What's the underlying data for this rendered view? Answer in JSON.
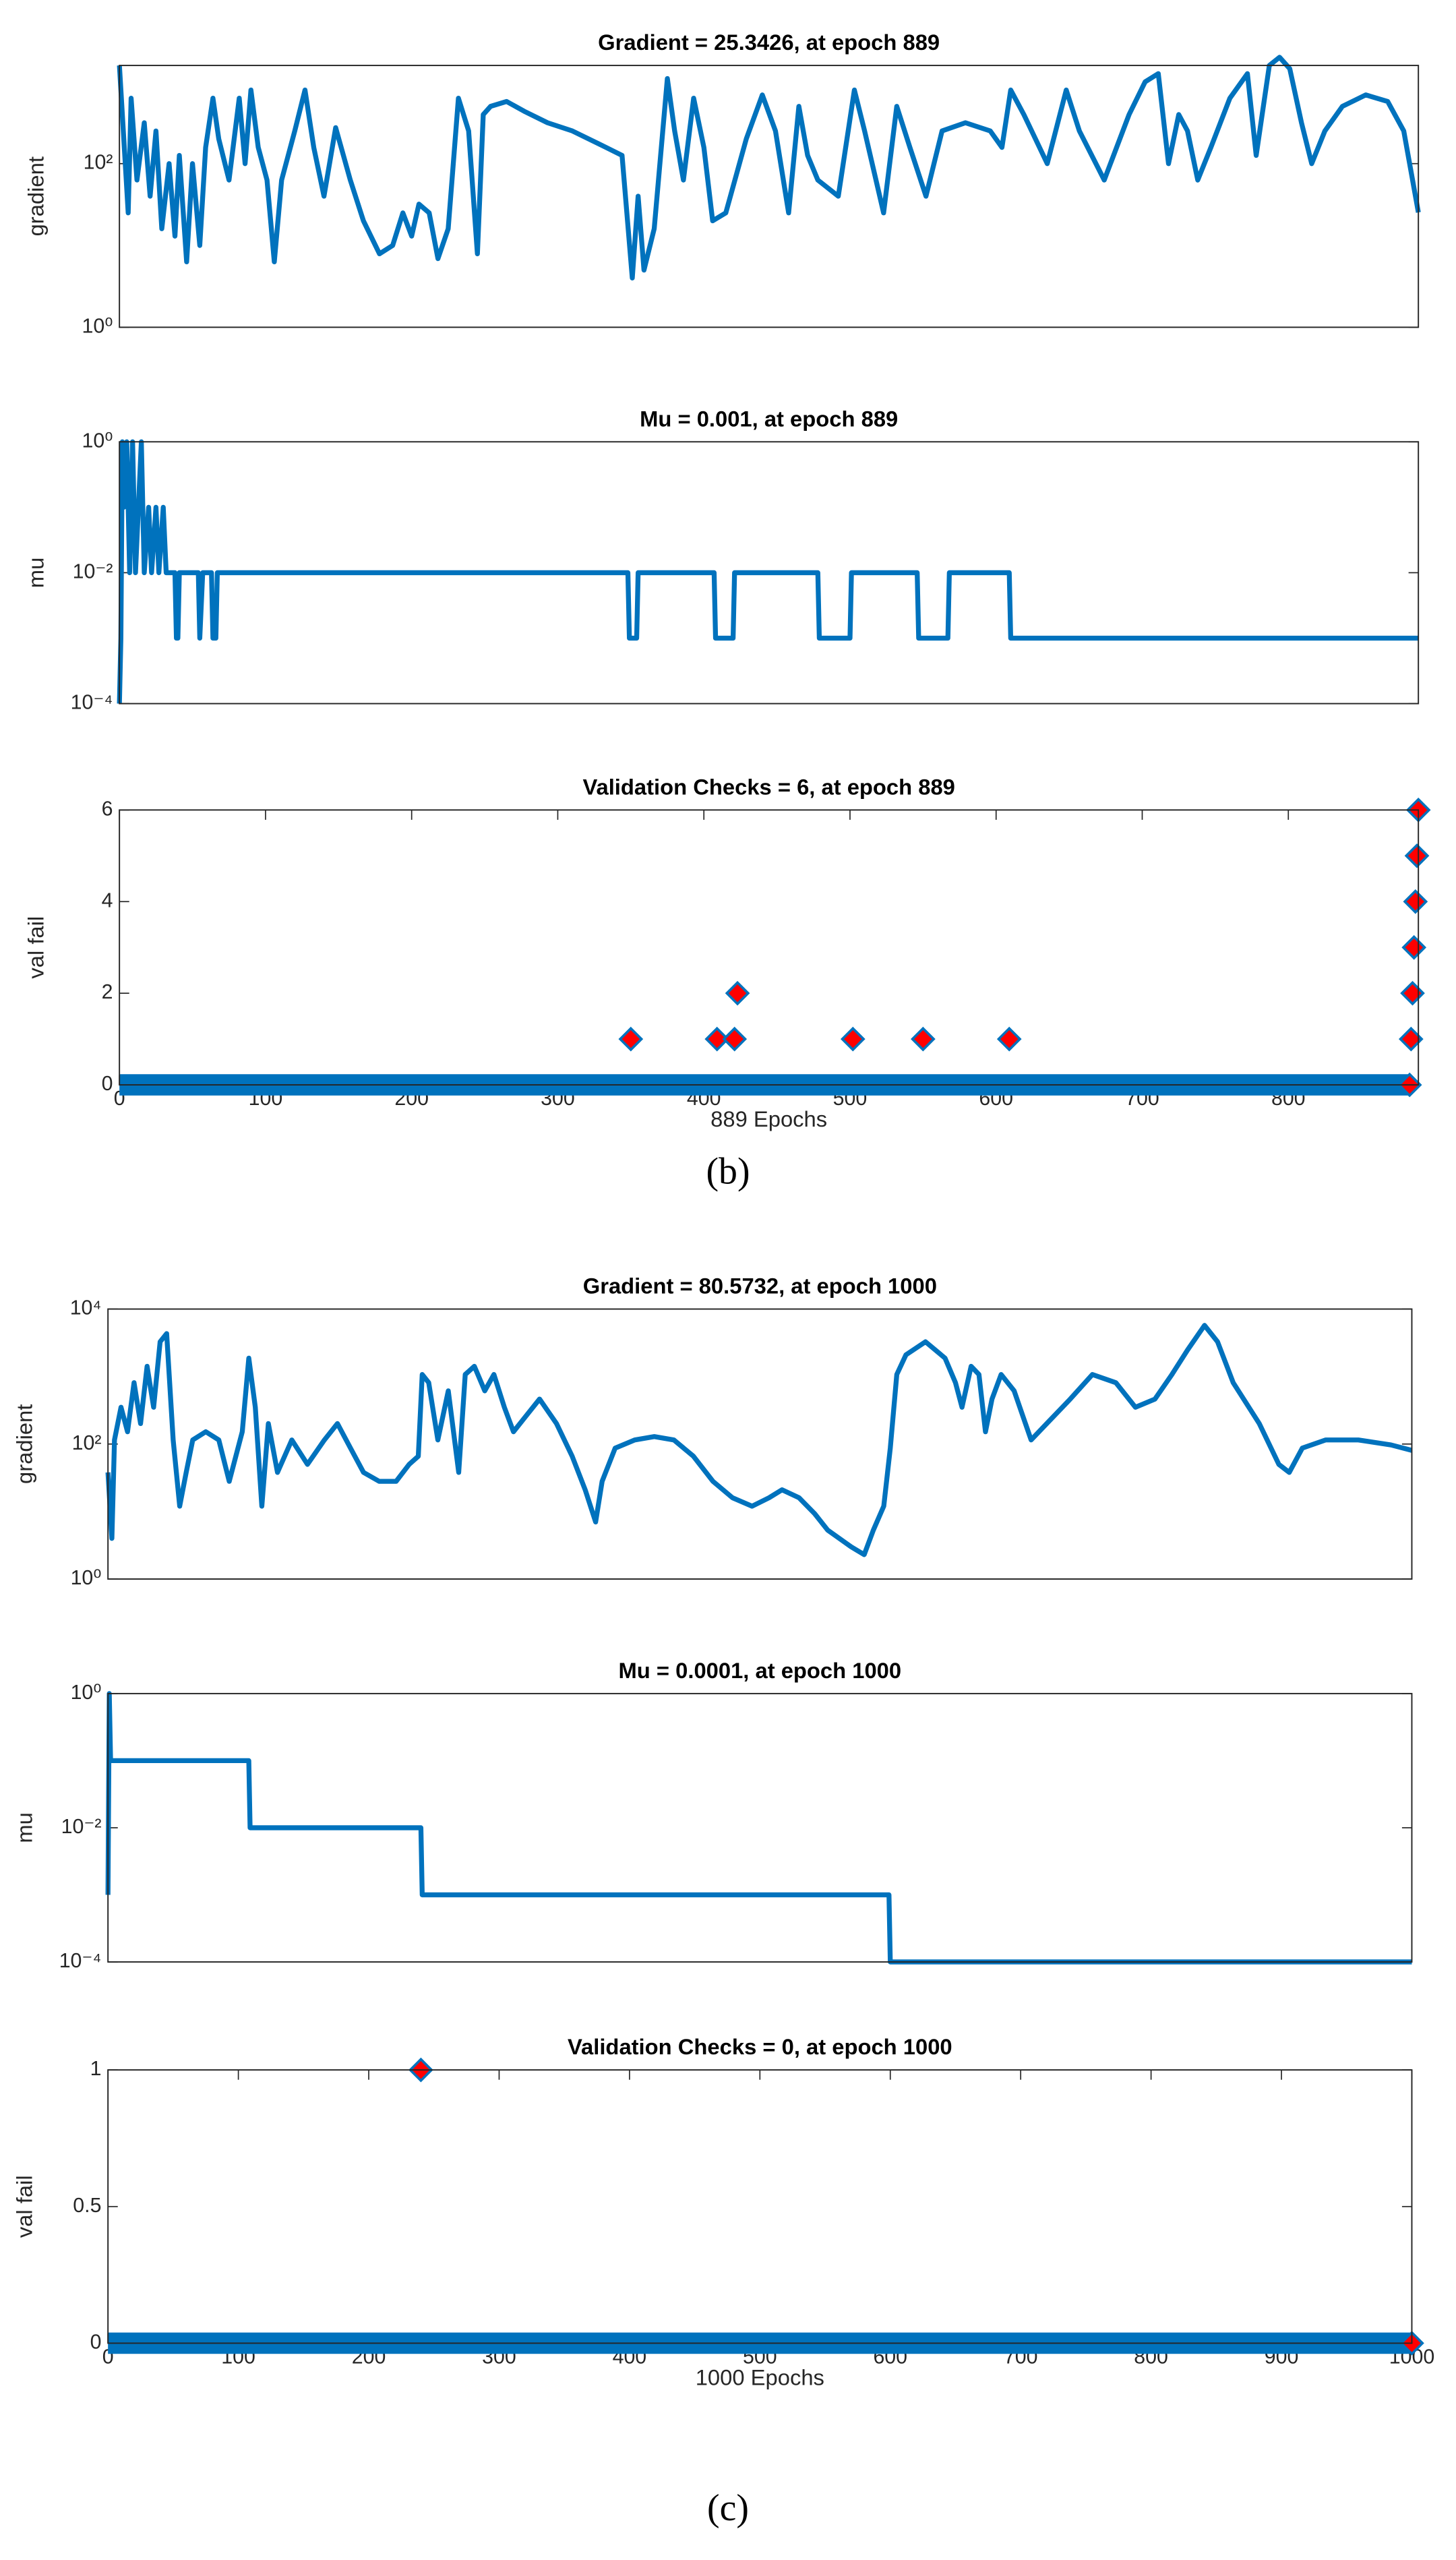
{
  "captions": [
    "(b)",
    "(c)"
  ],
  "chart_data": [
    {
      "type": "line",
      "title": "Gradient = 25.3426, at epoch 889",
      "ylabel": "gradient",
      "log_y": true,
      "color": "#0072bd",
      "xlim": [
        0,
        889
      ],
      "ylim": [
        1,
        1585
      ],
      "yticks": [
        {
          "value": 1,
          "label": "10⁰"
        },
        {
          "value": 100,
          "label": "10²"
        }
      ],
      "x": [
        0,
        6,
        8,
        12,
        17,
        21,
        25,
        29,
        34,
        38,
        41,
        46,
        50,
        55,
        59,
        64,
        68,
        75,
        82,
        86,
        90,
        95,
        101,
        106,
        111,
        120,
        127,
        133,
        140,
        148,
        158,
        167,
        178,
        187,
        194,
        200,
        205,
        212,
        218,
        225,
        232,
        239,
        245,
        249,
        254,
        265,
        277,
        293,
        310,
        333,
        344,
        351,
        355,
        359,
        366,
        375,
        380,
        386,
        393,
        400,
        406,
        415,
        429,
        440,
        449,
        458,
        465,
        471,
        478,
        492,
        503,
        510,
        523,
        532,
        541,
        552,
        563,
        579,
        596,
        604,
        610,
        619,
        635,
        648,
        657,
        674,
        691,
        702,
        711,
        718,
        725,
        731,
        738,
        747,
        760,
        772,
        778,
        787,
        794,
        801,
        809,
        816,
        825,
        837,
        853,
        868,
        879,
        889
      ],
      "values": [
        1585,
        25,
        631,
        63,
        316,
        40,
        251,
        16,
        100,
        13,
        126,
        6.3,
        100,
        10,
        158,
        631,
        200,
        63,
        631,
        100,
        794,
        158,
        63,
        6.3,
        63,
        251,
        794,
        158,
        40,
        275,
        63,
        20,
        7.9,
        10,
        25,
        13,
        32,
        25,
        6.9,
        16,
        631,
        251,
        7.9,
        398,
        501,
        575,
        437,
        316,
        251,
        158,
        126,
        4,
        40,
        5,
        16,
        1096,
        251,
        63,
        631,
        158,
        20,
        25,
        200,
        692,
        251,
        25,
        501,
        126,
        63,
        40,
        794,
        251,
        25,
        501,
        158,
        40,
        251,
        316,
        251,
        158,
        794,
        398,
        100,
        794,
        251,
        63,
        398,
        1000,
        1259,
        100,
        398,
        251,
        63,
        158,
        631,
        1259,
        126,
        1585,
        1995,
        1445,
        316,
        100,
        251,
        501,
        692,
        575,
        251,
        25.3426
      ]
    },
    {
      "type": "line",
      "title": "Mu = 0.001, at epoch 889",
      "ylabel": "mu",
      "log_y": true,
      "color": "#0072bd",
      "xlim": [
        0,
        889
      ],
      "ylim": [
        0.0001,
        1
      ],
      "yticks": [
        {
          "value": 0.0001,
          "label": "10⁻⁴"
        },
        {
          "value": 0.01,
          "label": "10⁻²"
        },
        {
          "value": 1,
          "label": "10⁰"
        }
      ],
      "x": [
        0,
        1,
        2,
        3,
        5,
        7,
        9,
        11,
        13,
        15,
        17,
        20,
        22,
        25,
        27,
        30,
        32,
        38,
        39,
        40,
        41,
        54,
        55,
        57,
        63,
        64,
        66,
        67,
        348,
        349,
        354,
        355,
        407,
        408,
        420,
        421,
        478,
        479,
        500,
        501,
        546,
        547,
        567,
        568,
        609,
        610,
        889
      ],
      "values": [
        0.0001,
        0.001,
        1,
        0.1,
        1,
        0.01,
        1,
        0.01,
        0.1,
        1,
        0.01,
        0.1,
        0.01,
        0.1,
        0.01,
        0.1,
        0.01,
        0.01,
        0.001,
        0.001,
        0.01,
        0.01,
        0.001,
        0.01,
        0.01,
        0.001,
        0.001,
        0.01,
        0.01,
        0.001,
        0.001,
        0.01,
        0.01,
        0.001,
        0.001,
        0.01,
        0.01,
        0.001,
        0.001,
        0.01,
        0.01,
        0.001,
        0.001,
        0.01,
        0.01,
        0.001,
        0.001
      ]
    },
    {
      "type": "scatter",
      "title": "Validation Checks = 6, at epoch 889",
      "ylabel": "val fail",
      "xlabel": "889 Epochs",
      "xlim": [
        0,
        889
      ],
      "ylim": [
        0,
        6
      ],
      "yticks": [
        0,
        2,
        4,
        6
      ],
      "xticks": [
        0,
        100,
        200,
        300,
        400,
        500,
        600,
        700,
        800
      ],
      "series": [
        {
          "color": "#0072bd",
          "x": [
            0,
            882
          ],
          "values": [
            0,
            0
          ]
        },
        {
          "color": "#ff0000",
          "x": [
            350,
            409,
            421,
            423,
            502,
            550,
            609,
            883,
            884,
            885,
            886,
            887,
            888,
            889
          ],
          "values": [
            1,
            1,
            1,
            2,
            1,
            1,
            1,
            0,
            1,
            2,
            3,
            4,
            5,
            6
          ]
        }
      ]
    },
    {
      "type": "line",
      "title": "Gradient = 80.5732, at epoch 1000",
      "ylabel": "gradient",
      "log_y": true,
      "color": "#0072bd",
      "xlim": [
        0,
        1000
      ],
      "ylim": [
        1,
        10000
      ],
      "yticks": [
        {
          "value": 1,
          "label": "10⁰"
        },
        {
          "value": 100,
          "label": "10²"
        },
        {
          "value": 10000,
          "label": "10⁴"
        }
      ],
      "x": [
        0,
        3,
        5,
        10,
        15,
        20,
        25,
        30,
        35,
        40,
        45,
        50,
        55,
        60,
        65,
        75,
        85,
        93,
        103,
        108,
        113,
        118,
        123,
        130,
        141,
        153,
        166,
        176,
        186,
        196,
        208,
        221,
        231,
        238,
        241,
        246,
        253,
        261,
        269,
        274,
        281,
        289,
        296,
        304,
        311,
        321,
        331,
        344,
        356,
        366,
        374,
        379,
        389,
        404,
        419,
        434,
        449,
        464,
        479,
        494,
        507,
        517,
        530,
        542,
        552,
        570,
        580,
        587,
        595,
        600,
        605,
        612,
        627,
        642,
        650,
        655,
        662,
        668,
        673,
        678,
        685,
        695,
        708,
        720,
        738,
        755,
        773,
        788,
        803,
        816,
        828,
        841,
        851,
        863,
        883,
        898,
        906,
        916,
        934,
        959,
        984,
        1000
      ],
      "values": [
        38,
        4,
        115,
        351,
        152,
        811,
        201,
        1418,
        351,
        3275,
        4329,
        115,
        12,
        38,
        115,
        152,
        115,
        28,
        152,
        1875,
        351,
        12,
        201,
        38,
        115,
        50,
        115,
        201,
        87,
        38,
        28,
        28,
        50,
        66,
        1073,
        811,
        115,
        614,
        38,
        1073,
        1418,
        614,
        1073,
        351,
        152,
        266,
        464,
        201,
        66,
        21,
        7,
        28,
        87,
        115,
        129,
        115,
        66,
        28,
        16,
        12,
        16,
        21,
        16,
        9.3,
        5.3,
        3,
        2.3,
        5.3,
        12,
        87,
        1073,
        2095,
        3275,
        1875,
        811,
        351,
        1418,
        1073,
        152,
        464,
        1073,
        614,
        115,
        201,
        464,
        1073,
        811,
        351,
        464,
        1073,
        2477,
        5724,
        3275,
        811,
        201,
        50,
        38,
        87,
        115,
        115,
        97,
        80.5732
      ]
    },
    {
      "type": "line",
      "title": "Mu = 0.0001, at epoch 1000",
      "ylabel": "mu",
      "log_y": true,
      "color": "#0072bd",
      "xlim": [
        0,
        1000
      ],
      "ylim": [
        0.0001,
        1
      ],
      "yticks": [
        {
          "value": 0.0001,
          "label": "10⁻⁴"
        },
        {
          "value": 0.01,
          "label": "10⁻²"
        },
        {
          "value": 1,
          "label": "10⁰"
        }
      ],
      "x": [
        0,
        1,
        2,
        108,
        109,
        240,
        241,
        599,
        600,
        1000
      ],
      "values": [
        0.001,
        1,
        0.1,
        0.1,
        0.01,
        0.01,
        0.001,
        0.001,
        0.0001,
        0.0001
      ]
    },
    {
      "type": "scatter",
      "title": "Validation Checks = 0, at epoch 1000",
      "ylabel": "val fail",
      "xlabel": "1000 Epochs",
      "xlim": [
        0,
        1000
      ],
      "ylim": [
        0,
        1
      ],
      "yticks": [
        0,
        0.5,
        1
      ],
      "xticks": [
        0,
        100,
        200,
        300,
        400,
        500,
        600,
        700,
        800,
        900,
        1000
      ],
      "series": [
        {
          "color": "#0072bd",
          "x": [
            0,
            999
          ],
          "values": [
            0,
            0
          ]
        },
        {
          "color": "#ff0000",
          "x": [
            240,
            1000
          ],
          "values": [
            1,
            0
          ]
        }
      ]
    }
  ]
}
